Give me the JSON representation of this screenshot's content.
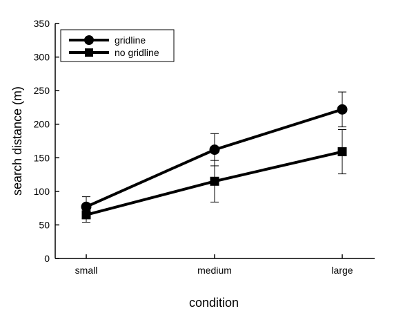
{
  "chart_data": {
    "type": "line",
    "title": "",
    "xlabel": "condition",
    "ylabel": "search distance (m)",
    "categories": [
      "small",
      "medium",
      "large"
    ],
    "ylim": [
      0,
      350
    ],
    "yticks": [
      0,
      50,
      100,
      150,
      200,
      250,
      300,
      350
    ],
    "grid": false,
    "legend_position": "top-left",
    "series": [
      {
        "name": "gridline",
        "marker": "circle",
        "color": "#000000",
        "values": [
          77,
          162,
          222
        ],
        "errors": [
          15,
          24,
          26
        ]
      },
      {
        "name": "no gridline",
        "marker": "square",
        "color": "#000000",
        "values": [
          65,
          115,
          159
        ],
        "errors": [
          11,
          31,
          33
        ]
      }
    ]
  }
}
